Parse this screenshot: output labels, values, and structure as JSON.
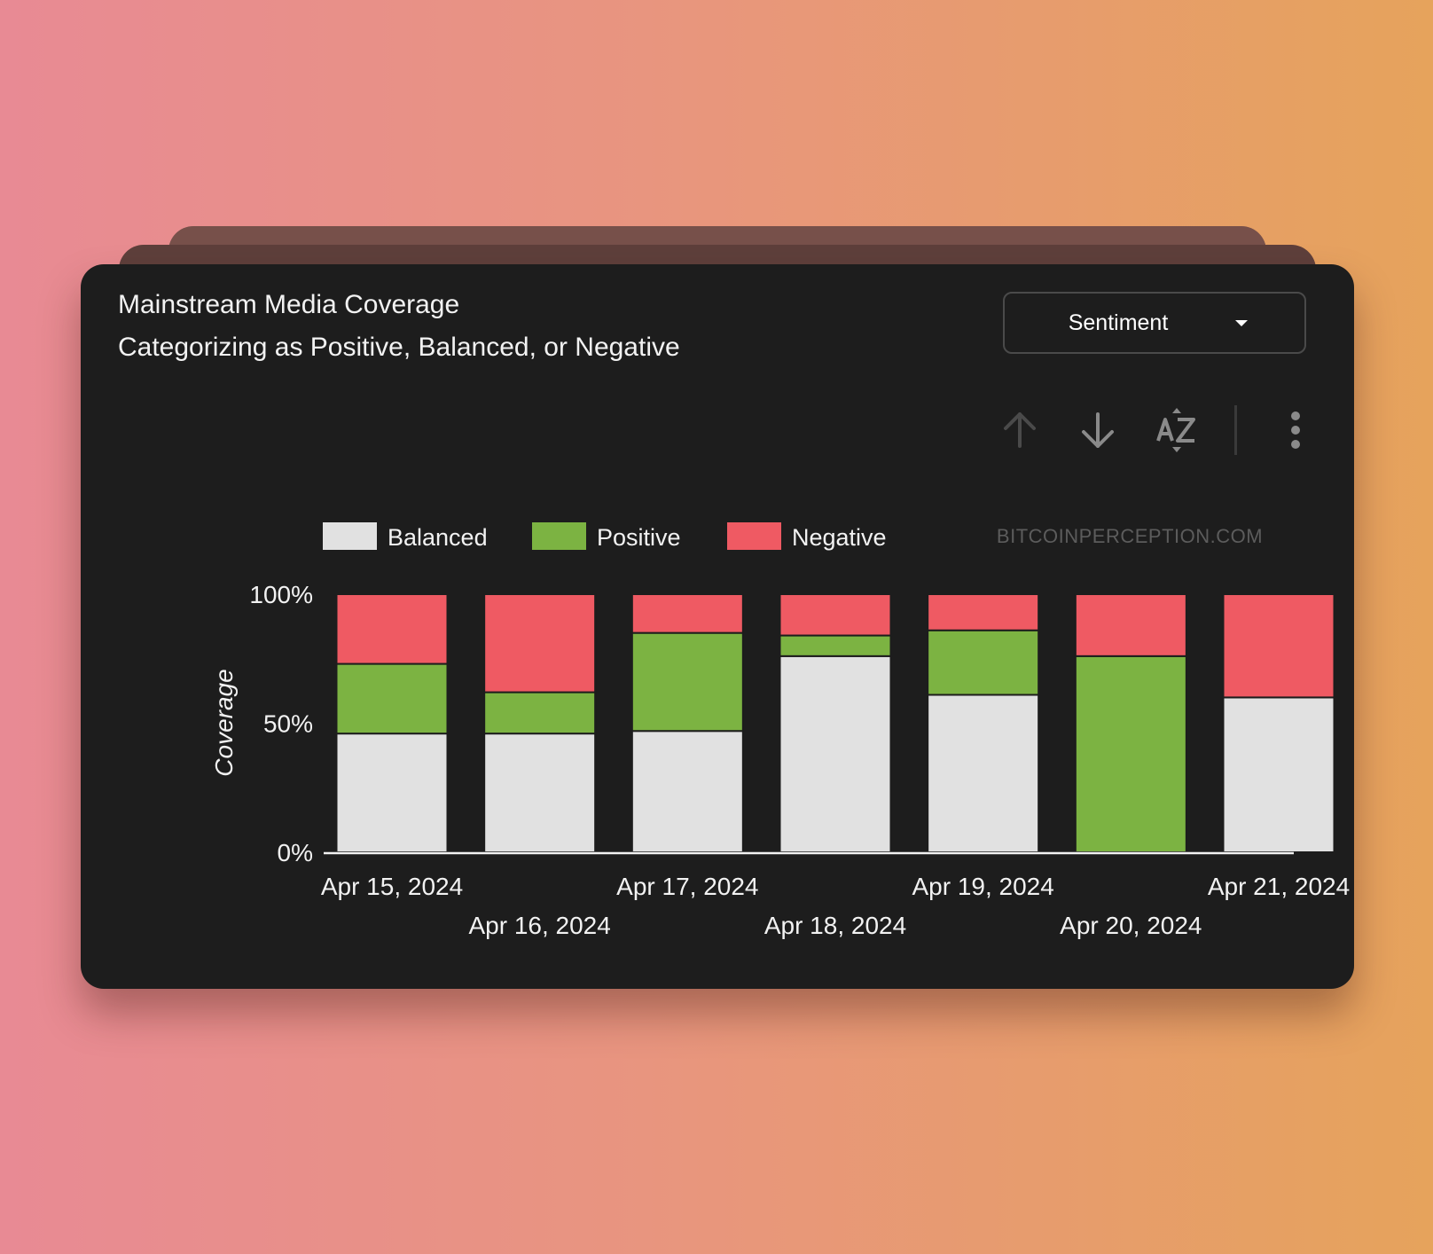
{
  "header": {
    "title": "Mainstream Media Coverage",
    "subtitle": "Categorizing as Positive, Balanced, or Negative"
  },
  "dropdown": {
    "selected": "Sentiment",
    "icon": "caret-down-icon"
  },
  "toolbar": {
    "buttons": [
      {
        "name": "sort-ascending",
        "icon": "arrow-up-icon",
        "enabled": false
      },
      {
        "name": "sort-descending",
        "icon": "arrow-down-icon",
        "enabled": true
      },
      {
        "name": "sort-alphabetical",
        "icon": "az-sort-icon",
        "enabled": true
      },
      {
        "name": "more-options",
        "icon": "more-vertical-icon",
        "enabled": true
      }
    ]
  },
  "chart_data": {
    "type": "bar",
    "stacked": true,
    "watermark": "BITCOINPERCEPTION.COM",
    "ylabel": "Coverage",
    "ylim": [
      0,
      100
    ],
    "yticks": [
      "0%",
      "50%",
      "100%"
    ],
    "categories": [
      "Apr 15, 2024",
      "Apr 16, 2024",
      "Apr 17, 2024",
      "Apr 18, 2024",
      "Apr 19, 2024",
      "Apr 20, 2024",
      "Apr 21, 2024"
    ],
    "series": [
      {
        "name": "Balanced",
        "color": "#e1e1e1",
        "values": [
          46,
          46,
          47,
          76,
          61,
          0,
          60
        ]
      },
      {
        "name": "Positive",
        "color": "#7cb342",
        "values": [
          27,
          16,
          38,
          8,
          25,
          76,
          0
        ]
      },
      {
        "name": "Negative",
        "color": "#ef5a63",
        "values": [
          27,
          38,
          15,
          16,
          14,
          24,
          40
        ]
      }
    ],
    "legend_position": "top",
    "grid": false
  }
}
